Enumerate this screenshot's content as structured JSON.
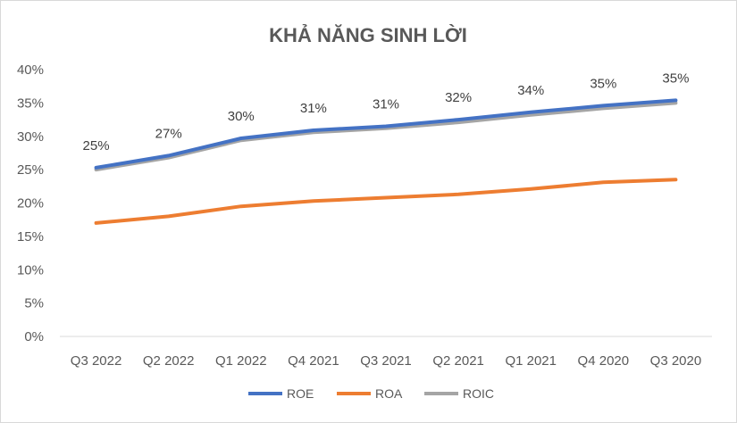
{
  "chart_data": {
    "type": "line",
    "title": "KHẢ NĂNG SINH LỜI",
    "xlabel": "",
    "ylabel": "",
    "categories": [
      "Q3 2022",
      "Q2 2022",
      "Q1 2022",
      "Q4 2021",
      "Q3 2021",
      "Q2 2021",
      "Q1 2021",
      "Q4 2020",
      "Q3 2020"
    ],
    "yticks": [
      "0%",
      "5%",
      "10%",
      "15%",
      "20%",
      "25%",
      "30%",
      "35%",
      "40%"
    ],
    "ylim": [
      0,
      40
    ],
    "grid": false,
    "legend_position": "bottom",
    "series": [
      {
        "name": "ROE",
        "color": "#4472c4",
        "values": [
          25.3,
          27.1,
          29.7,
          30.9,
          31.5,
          32.5,
          33.6,
          34.6,
          35.4
        ]
      },
      {
        "name": "ROA",
        "color": "#ed7d31",
        "values": [
          17.0,
          18.0,
          19.5,
          20.3,
          20.8,
          21.3,
          22.1,
          23.1,
          23.5
        ]
      },
      {
        "name": "ROIC",
        "color": "#a5a5a5",
        "values": [
          25.0,
          26.8,
          29.4,
          30.6,
          31.2,
          32.1,
          33.2,
          34.2,
          35.0
        ]
      }
    ],
    "data_labels": [
      "25%",
      "27%",
      "30%",
      "31%",
      "31%",
      "32%",
      "34%",
      "35%",
      "35%"
    ]
  }
}
